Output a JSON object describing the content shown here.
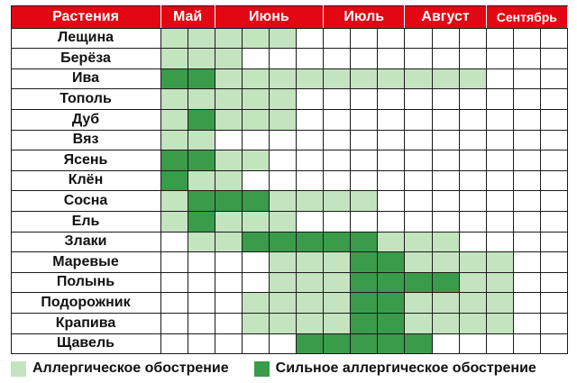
{
  "header": {
    "plants_label": "Растения",
    "months": [
      "Май",
      "Июнь",
      "Июль",
      "Август",
      "Сентябрь"
    ]
  },
  "colors": {
    "header_bg": "#e30613",
    "mild": "#c4e3bf",
    "strong": "#3a9b4a",
    "none": "#ffffff",
    "grid": "#1a1a1a"
  },
  "rows": [
    {
      "name": "Лещина",
      "levels": [
        1,
        1,
        1,
        1,
        1,
        0,
        0,
        0,
        0,
        0,
        0,
        0,
        0,
        0,
        0
      ]
    },
    {
      "name": "Берёза",
      "levels": [
        1,
        1,
        1,
        0,
        0,
        0,
        0,
        0,
        0,
        0,
        0,
        0,
        0,
        0,
        0
      ]
    },
    {
      "name": "Ива",
      "levels": [
        2,
        2,
        1,
        1,
        1,
        1,
        1,
        1,
        1,
        1,
        1,
        1,
        0,
        0,
        0
      ]
    },
    {
      "name": "Тополь",
      "levels": [
        1,
        1,
        1,
        1,
        1,
        0,
        0,
        0,
        0,
        0,
        0,
        0,
        0,
        0,
        0
      ]
    },
    {
      "name": "Дуб",
      "levels": [
        1,
        2,
        1,
        1,
        1,
        0,
        0,
        0,
        0,
        0,
        0,
        0,
        0,
        0,
        0
      ]
    },
    {
      "name": "Вяз",
      "levels": [
        1,
        1,
        0,
        0,
        0,
        0,
        0,
        0,
        0,
        0,
        0,
        0,
        0,
        0,
        0
      ]
    },
    {
      "name": "Ясень",
      "levels": [
        2,
        2,
        1,
        1,
        0,
        0,
        0,
        0,
        0,
        0,
        0,
        0,
        0,
        0,
        0
      ]
    },
    {
      "name": "Клён",
      "levels": [
        2,
        1,
        1,
        0,
        0,
        0,
        0,
        0,
        0,
        0,
        0,
        0,
        0,
        0,
        0
      ]
    },
    {
      "name": "Сосна",
      "levels": [
        1,
        2,
        2,
        2,
        1,
        1,
        1,
        1,
        0,
        0,
        0,
        0,
        0,
        0,
        0
      ]
    },
    {
      "name": "Ель",
      "levels": [
        1,
        2,
        1,
        1,
        1,
        0,
        0,
        0,
        0,
        0,
        0,
        0,
        0,
        0,
        0
      ]
    },
    {
      "name": "Злаки",
      "levels": [
        0,
        1,
        1,
        2,
        2,
        2,
        2,
        2,
        1,
        1,
        1,
        0,
        0,
        0,
        0
      ]
    },
    {
      "name": "Маревые",
      "levels": [
        0,
        0,
        0,
        0,
        1,
        1,
        1,
        2,
        2,
        1,
        1,
        1,
        1,
        0,
        0
      ]
    },
    {
      "name": "Полынь",
      "levels": [
        0,
        0,
        0,
        0,
        1,
        1,
        1,
        2,
        2,
        2,
        2,
        1,
        1,
        0,
        0
      ]
    },
    {
      "name": "Подорожник",
      "levels": [
        0,
        0,
        0,
        1,
        1,
        1,
        1,
        2,
        2,
        1,
        1,
        1,
        1,
        0,
        0
      ]
    },
    {
      "name": "Крапива",
      "levels": [
        0,
        0,
        0,
        1,
        1,
        1,
        1,
        2,
        2,
        1,
        1,
        1,
        1,
        0,
        0
      ]
    },
    {
      "name": "Щавель",
      "levels": [
        0,
        0,
        0,
        0,
        0,
        2,
        2,
        2,
        2,
        2,
        0,
        0,
        0,
        0,
        0
      ]
    }
  ],
  "legend": {
    "mild_label": "Аллергическое обострение",
    "strong_label": "Сильное аллергическое обострение"
  }
}
